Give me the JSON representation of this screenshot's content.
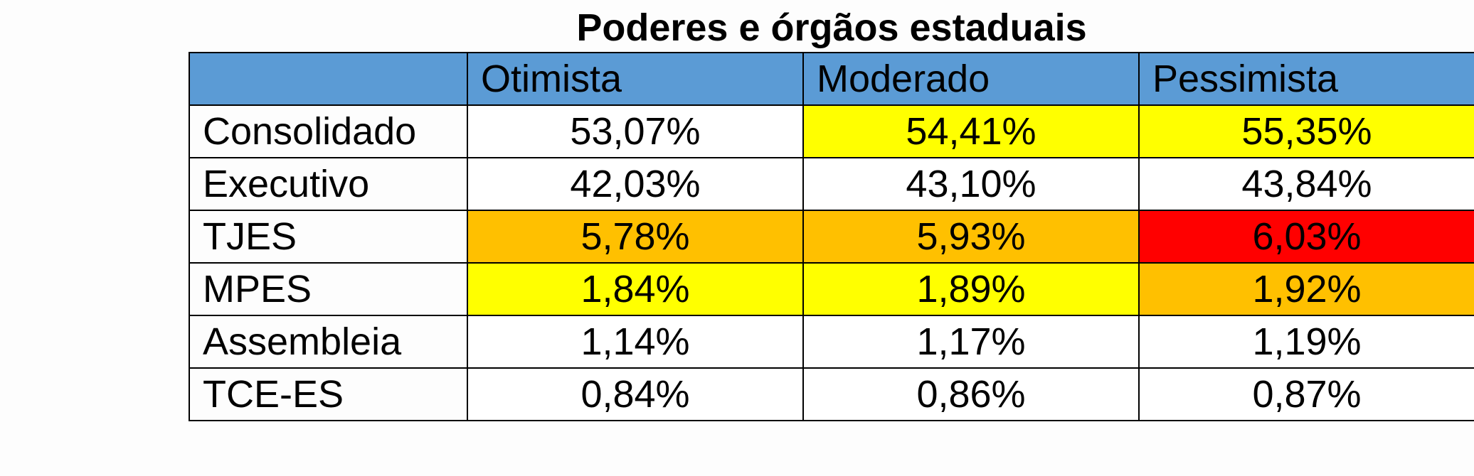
{
  "chart_data": {
    "type": "table",
    "title": "Poderes e órgãos estaduais",
    "columns": [
      "",
      "Otimista",
      "Moderado",
      "Pessimista"
    ],
    "rows": [
      {
        "label": "Consolidado",
        "values": [
          "53,07%",
          "54,41%",
          "55,35%"
        ],
        "colors": [
          "#ffffff",
          "#ffff00",
          "#ffff00"
        ]
      },
      {
        "label": "Executivo",
        "values": [
          "42,03%",
          "43,10%",
          "43,84%"
        ],
        "colors": [
          "#ffffff",
          "#ffffff",
          "#ffffff"
        ]
      },
      {
        "label": "TJES",
        "values": [
          "5,78%",
          "5,93%",
          "6,03%"
        ],
        "colors": [
          "#ffc000",
          "#ffc000",
          "#ff0000"
        ]
      },
      {
        "label": "MPES",
        "values": [
          "1,84%",
          "1,89%",
          "1,92%"
        ],
        "colors": [
          "#ffff00",
          "#ffff00",
          "#ffc000"
        ]
      },
      {
        "label": "Assembleia",
        "values": [
          "1,14%",
          "1,17%",
          "1,19%"
        ],
        "colors": [
          "#ffffff",
          "#ffffff",
          "#ffffff"
        ]
      },
      {
        "label": "TCE-ES",
        "values": [
          "0,84%",
          "0,86%",
          "0,87%"
        ],
        "colors": [
          "#ffffff",
          "#ffffff",
          "#ffffff"
        ]
      }
    ],
    "header_color": "#5b9bd5"
  }
}
